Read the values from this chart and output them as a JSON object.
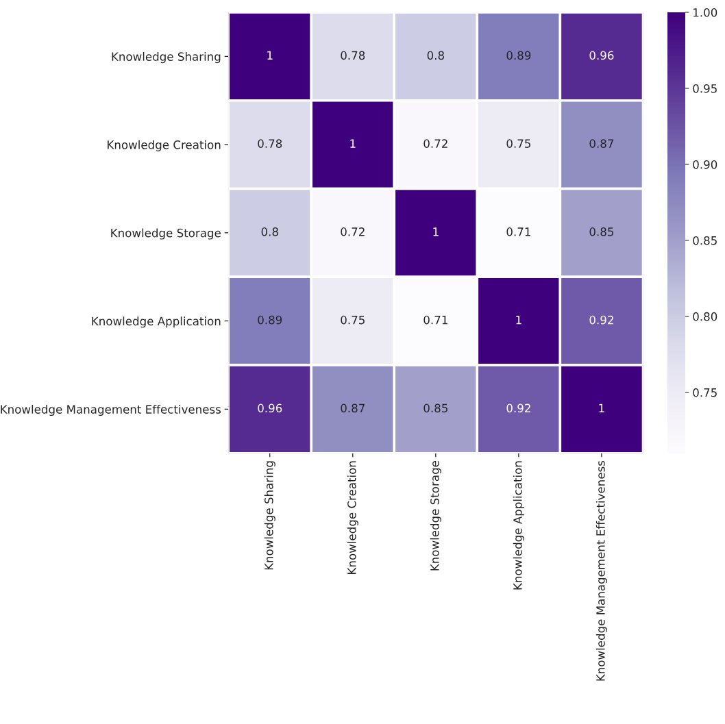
{
  "chart_data": {
    "type": "heatmap",
    "categories": [
      "Knowledge Sharing",
      "Knowledge Creation",
      "Knowledge Storage",
      "Knowledge Application",
      "Knowledge Management Effectiveness"
    ],
    "y_categories": [
      "Knowledge Sharing",
      "Knowledge Creation",
      "Knowledge Storage",
      "Knowledge Application",
      "Knowledge Management Effectiveness"
    ],
    "cells": [
      [
        1,
        0.78,
        0.8,
        0.89,
        0.96
      ],
      [
        0.78,
        1,
        0.72,
        0.75,
        0.87
      ],
      [
        0.8,
        0.72,
        1,
        0.71,
        0.85
      ],
      [
        0.89,
        0.75,
        0.71,
        1,
        0.92
      ],
      [
        0.96,
        0.87,
        0.85,
        0.92,
        1
      ]
    ],
    "clim": [
      0.71,
      1.0
    ],
    "cticks": [
      {
        "value": 0.75,
        "label": "0.75"
      },
      {
        "value": 0.8,
        "label": "0.80"
      },
      {
        "value": 0.85,
        "label": "0.85"
      },
      {
        "value": 0.9,
        "label": "0.90"
      },
      {
        "value": 0.95,
        "label": "0.95"
      },
      {
        "value": 1.0,
        "label": "1.00"
      }
    ],
    "data_labels": true
  }
}
